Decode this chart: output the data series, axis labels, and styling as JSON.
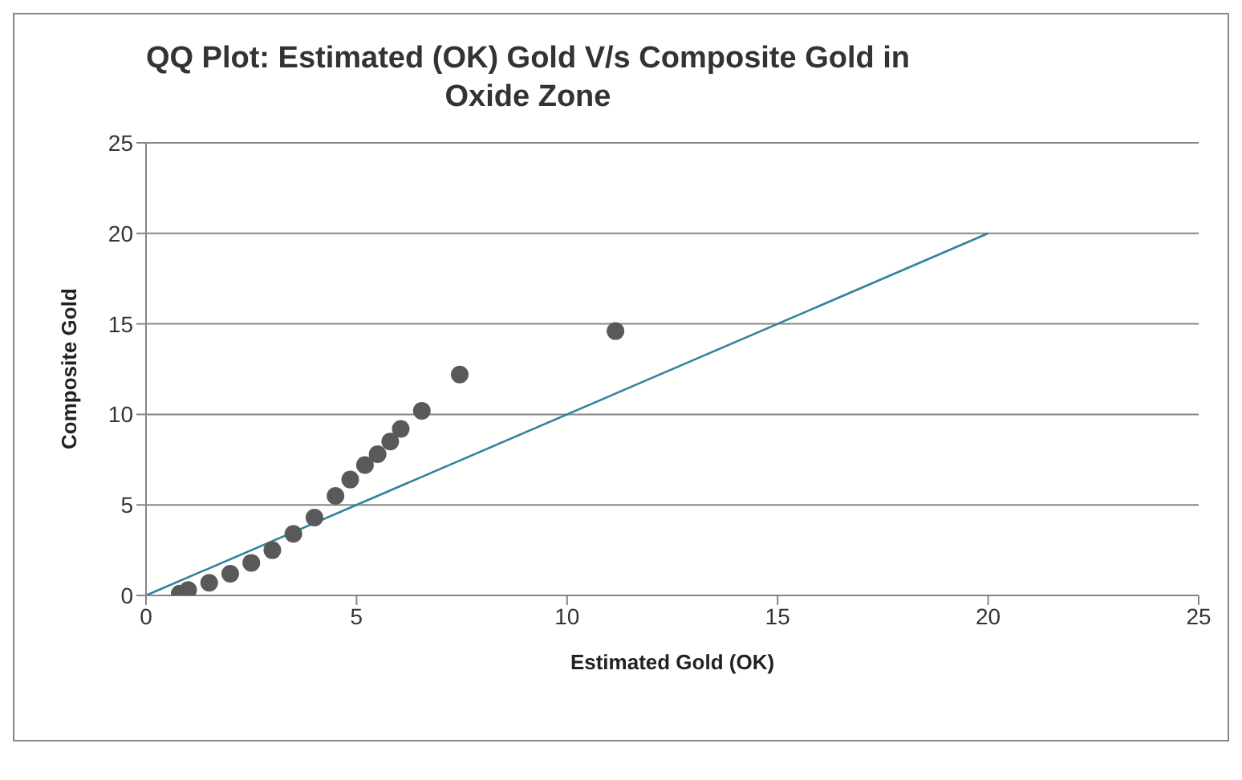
{
  "chart_data": {
    "type": "scatter",
    "title": "QQ Plot: Estimated (OK) Gold V/s Composite Gold in Oxide Zone",
    "xlabel": "Estimated Gold (OK)",
    "ylabel": "Composite Gold",
    "xlim": [
      0,
      25
    ],
    "xticks": [
      0,
      5,
      10,
      15,
      20,
      25
    ],
    "ylim": [
      0,
      25
    ],
    "yticks": [
      0,
      5,
      10,
      15,
      20,
      25
    ],
    "grid": "y",
    "legend": false,
    "series": [
      {
        "type": "scatter",
        "marker": "circle",
        "color": "#595959",
        "x": [
          0.8,
          1.0,
          1.5,
          2.0,
          2.5,
          3.0,
          3.5,
          4.0,
          4.5,
          4.85,
          5.2,
          5.5,
          5.8,
          6.05,
          6.55,
          7.45,
          11.15
        ],
        "values": [
          0.1,
          0.3,
          0.7,
          1.2,
          1.8,
          2.5,
          3.4,
          4.3,
          5.5,
          6.4,
          7.2,
          7.8,
          8.5,
          9.2,
          10.2,
          12.2,
          14.6
        ]
      },
      {
        "type": "line",
        "color": "#31849b",
        "x": [
          0,
          20
        ],
        "values": [
          0,
          20
        ]
      }
    ]
  }
}
